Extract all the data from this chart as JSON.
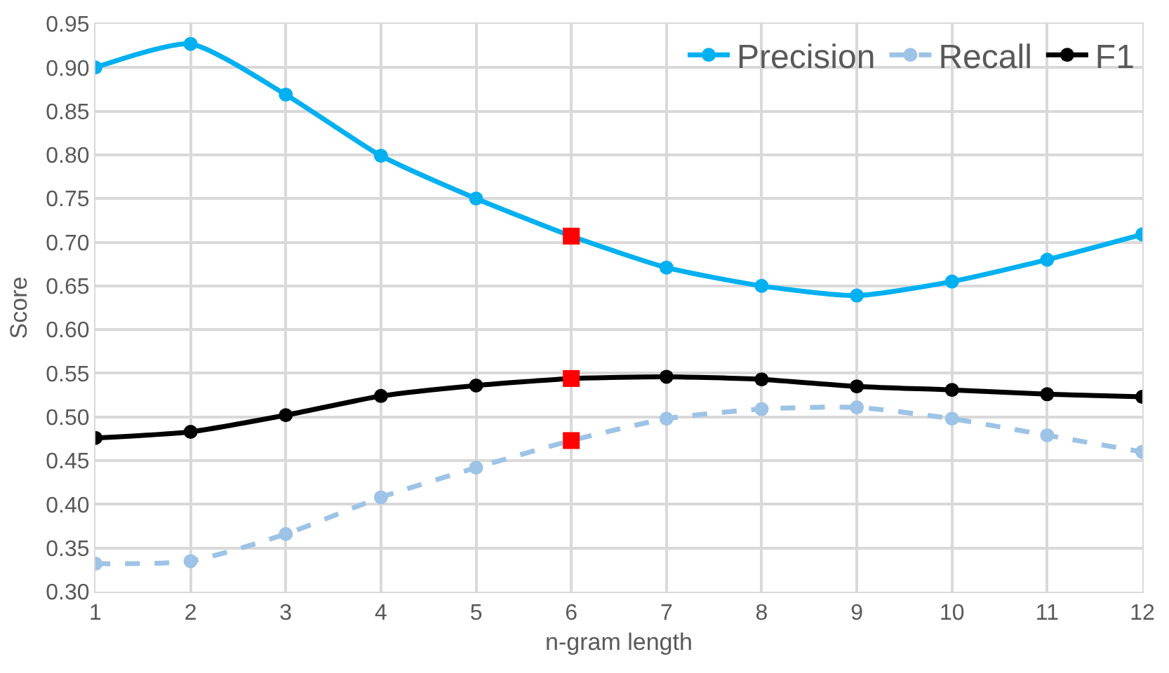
{
  "chart_data": {
    "type": "line",
    "xlabel": "n-gram length",
    "ylabel": "Score",
    "x": [
      1,
      2,
      3,
      4,
      5,
      6,
      7,
      8,
      9,
      10,
      11,
      12
    ],
    "xlim": [
      1,
      12
    ],
    "xticks": [
      1,
      2,
      3,
      4,
      5,
      6,
      7,
      8,
      9,
      10,
      11,
      12
    ],
    "ylim": [
      0.3,
      0.95
    ],
    "yticks": [
      {
        "value": 0.3,
        "label": "0.30"
      },
      0.35,
      {
        "value": 0.4,
        "label": "0.40"
      },
      0.45,
      {
        "value": 0.5,
        "label": "0.50"
      },
      0.55,
      {
        "value": 0.6,
        "label": "0.60"
      },
      0.65,
      {
        "value": 0.7,
        "label": "0.70"
      },
      0.75,
      {
        "value": 0.8,
        "label": "0.80"
      },
      0.85,
      {
        "value": 0.9,
        "label": "0.90"
      },
      0.95
    ],
    "grid": true,
    "legend": "top right",
    "marker": "circle",
    "series": [
      {
        "name": "Precision",
        "color": "#00b0f0",
        "line_style": "solid",
        "values": [
          0.9,
          0.927,
          0.869,
          0.799,
          0.75,
          0.707,
          0.671,
          0.65,
          0.639,
          0.655,
          0.68,
          0.709
        ]
      },
      {
        "name": "Recall",
        "color": "#9dc3e6",
        "line_style": "dashed",
        "values": [
          0.332,
          0.335,
          0.366,
          0.408,
          0.442,
          0.473,
          0.498,
          0.509,
          0.511,
          0.498,
          0.479,
          0.46
        ]
      },
      {
        "name": "F1",
        "color": "#000000",
        "line_style": "solid",
        "values": [
          0.476,
          0.483,
          0.502,
          0.524,
          0.536,
          0.544,
          0.546,
          0.543,
          0.535,
          0.531,
          0.526,
          0.523
        ]
      },
      {
        "type": "scatter",
        "color": "#ff0000",
        "marker": "square",
        "values": [
          null,
          null,
          null,
          null,
          null,
          0.707,
          null,
          null,
          null,
          null,
          null,
          null
        ]
      },
      {
        "type": "scatter",
        "color": "#ff0000",
        "marker": "square",
        "values": [
          null,
          null,
          null,
          null,
          null,
          0.544,
          null,
          null,
          null,
          null,
          null,
          null
        ]
      },
      {
        "type": "scatter",
        "color": "#ff0000",
        "marker": "square",
        "values": [
          null,
          null,
          null,
          null,
          null,
          0.473,
          null,
          null,
          null,
          null,
          null,
          null
        ]
      }
    ]
  }
}
